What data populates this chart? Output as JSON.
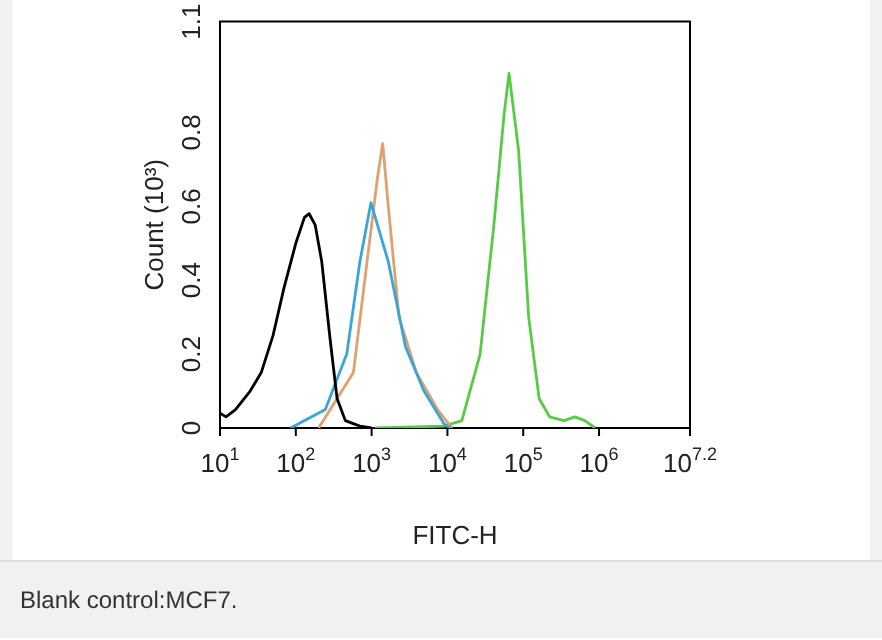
{
  "chart_data": {
    "type": "line",
    "xlabel": "FITC-H",
    "ylabel": "Count (10³)",
    "log": "x",
    "grid": false,
    "legend": false,
    "marker": "none",
    "line_style": "solid",
    "xlim": [
      10,
      15848932
    ],
    "xticks": [
      {
        "value": 10,
        "label": "10$^{1}$"
      },
      {
        "value": 100,
        "label": "10$^{2}$"
      },
      {
        "value": 1000,
        "label": "10$^{3}$"
      },
      {
        "value": 10000,
        "label": "10$^{4}$"
      },
      {
        "value": 100000,
        "label": "10$^{5}$"
      },
      {
        "value": 1000000,
        "label": "10$^{6}$"
      },
      {
        "value": 15848932,
        "label": "10$^{7.2}$"
      }
    ],
    "ylim": [
      0,
      1.1
    ],
    "yticks": [
      0,
      0.2,
      0.4,
      0.6,
      0.8,
      1.1
    ],
    "series": [
      {
        "color": "#000000",
        "x": [
          10,
          12,
          16,
          25,
          35,
          50,
          70,
          100,
          130,
          150,
          180,
          220,
          280,
          350,
          450,
          700,
          1000
        ],
        "values": [
          0.04,
          0.03,
          0.05,
          0.1,
          0.15,
          0.25,
          0.38,
          0.5,
          0.57,
          0.58,
          0.55,
          0.45,
          0.25,
          0.08,
          0.02,
          0.005,
          0
        ]
      },
      {
        "color": "#3aa6d8",
        "x": [
          85,
          245,
          470,
          700,
          980,
          1660,
          2800,
          4900,
          9100,
          11000
        ],
        "values": [
          0,
          0.05,
          0.2,
          0.45,
          0.61,
          0.45,
          0.22,
          0.1,
          0.01,
          0
        ]
      },
      {
        "color": "#e0a070",
        "x": [
          200,
          575,
          870,
          1200,
          1400,
          1660,
          2300,
          3900,
          7400,
          11500
        ],
        "values": [
          0,
          0.15,
          0.45,
          0.68,
          0.77,
          0.6,
          0.3,
          0.15,
          0.05,
          0
        ]
      },
      {
        "color": "#55cc44",
        "x": [
          1100,
          9000,
          15500,
          27000,
          41000,
          56000,
          65000,
          87000,
          118000,
          162000,
          223000,
          345000,
          480000,
          650000,
          890000
        ],
        "values": [
          0,
          0.005,
          0.02,
          0.2,
          0.55,
          0.85,
          0.96,
          0.75,
          0.3,
          0.08,
          0.03,
          0.02,
          0.03,
          0.02,
          0
        ]
      }
    ],
    "annotations": [
      "Blank control:MCF7."
    ]
  }
}
